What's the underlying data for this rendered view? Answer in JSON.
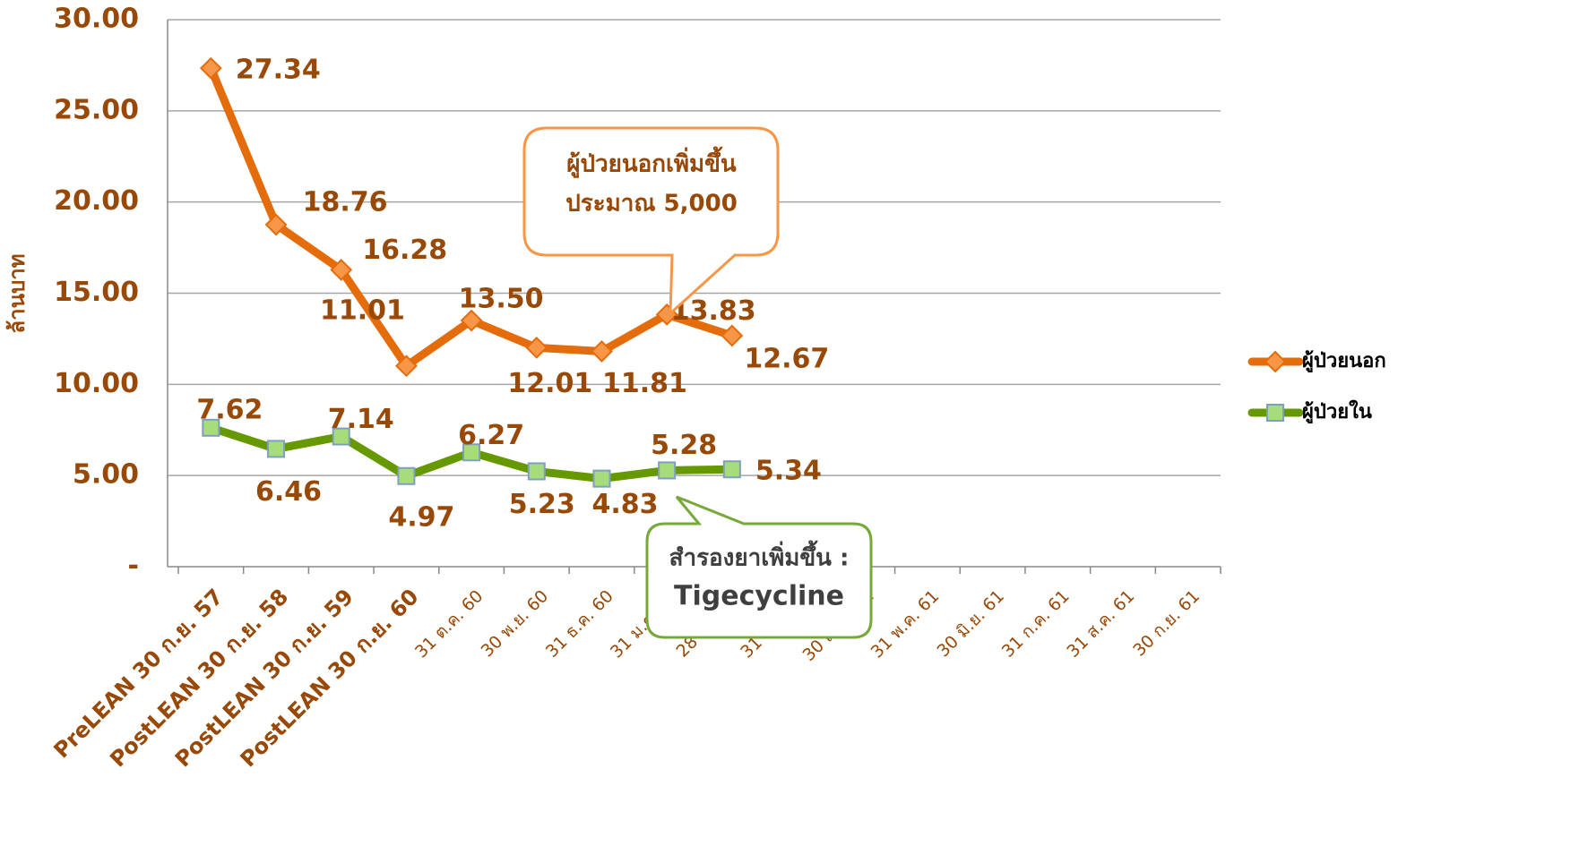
{
  "chart_data": {
    "type": "line",
    "y_label": "ล้านบาท",
    "categories": [
      "PreLEAN 30 ก.ย. 57",
      "PostLEAN 30 ก.ย. 58",
      "PostLEAN 30 ก.ย. 59",
      "PostLEAN 30 ก.ย. 60",
      "31 ต.ค. 60",
      "30 พ.ย. 60",
      "31 ธ.ค. 60",
      "31 ม.ค. 61",
      "28 ก.พ. 61",
      "31 มี.ค. 61",
      "30 เม.ย. 61",
      "31 พ.ค. 61",
      "30 มิ.ย. 61",
      "31 ก.ค. 61",
      "31 ส.ค. 61",
      "30 ก.ย. 61"
    ],
    "series": [
      {
        "name": "ผู้ป่วยนอก",
        "color": "#e46c0a",
        "marker_color": "#f79646",
        "values": [
          27.34,
          18.76,
          16.28,
          11.01,
          13.5,
          12.01,
          11.81,
          13.83,
          12.67,
          null,
          null,
          null,
          null,
          null,
          null,
          null
        ],
        "value_labels": [
          "27.34",
          "18.76",
          "16.28",
          "11.01",
          "13.50",
          "12.01",
          "11.81",
          "13.83",
          "12.67",
          null,
          null,
          null,
          null,
          null,
          null,
          null
        ]
      },
      {
        "name": "ผู้ป่วยใน",
        "color": "#669900",
        "marker_color": "#a6dc7a",
        "values": [
          7.62,
          6.46,
          7.14,
          4.97,
          6.27,
          5.23,
          4.83,
          5.28,
          5.34,
          null,
          null,
          null,
          null,
          null,
          null,
          null
        ],
        "value_labels": [
          "7.62",
          "6.46",
          "7.14",
          "4.97",
          "6.27",
          "5.23",
          "4.83",
          "5.28",
          "5.34",
          null,
          null,
          null,
          null,
          null,
          null,
          null
        ]
      }
    ],
    "ylim": [
      0,
      30
    ],
    "yticks": [
      {
        "value": 0,
        "label": "-"
      },
      {
        "value": 5,
        "label": "5.00"
      },
      {
        "value": 10,
        "label": "10.00"
      },
      {
        "value": 15,
        "label": "15.00"
      },
      {
        "value": 20,
        "label": "20.00"
      },
      {
        "value": 25,
        "label": "25.00"
      },
      {
        "value": 30,
        "label": "30.00"
      }
    ],
    "grid": true,
    "legend": "right",
    "annotations": [
      {
        "lines": [
          "ผู้ป่วยนอกเพิ่มขึ้น",
          "ประมาณ 5,000"
        ]
      },
      {
        "lines": [
          "สำรองยาเพิ่มขึ้น :",
          "Tigecycline"
        ]
      }
    ]
  }
}
